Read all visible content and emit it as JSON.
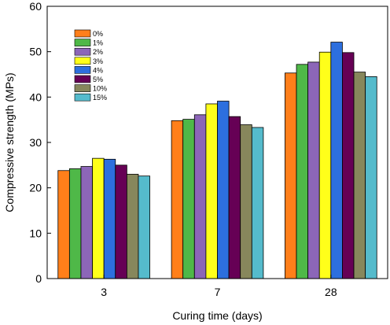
{
  "chart_data": {
    "type": "bar",
    "title": "",
    "xlabel": "Curing time (days)",
    "ylabel": "Compressive strength  (MPs)",
    "ylim": [
      0,
      60
    ],
    "yticks": [
      "0",
      "10",
      "20",
      "30",
      "40",
      "50",
      "60"
    ],
    "categories": [
      "3",
      "7",
      "28"
    ],
    "grid": false,
    "legend_position": "top-left",
    "series": [
      {
        "name": "0%",
        "color": "#ff7f1a",
        "values": [
          23.8,
          34.8,
          45.3
        ]
      },
      {
        "name": "1%",
        "color": "#4fb848",
        "values": [
          24.2,
          35.1,
          47.2
        ]
      },
      {
        "name": "2%",
        "color": "#8c66b8",
        "values": [
          24.7,
          36.1,
          47.7
        ]
      },
      {
        "name": "3%",
        "color": "#ffff1a",
        "values": [
          26.5,
          38.5,
          49.9
        ]
      },
      {
        "name": "4%",
        "color": "#2d6fde",
        "values": [
          26.3,
          39.1,
          52.1
        ]
      },
      {
        "name": "5%",
        "color": "#660055",
        "values": [
          25.0,
          35.7,
          49.8
        ]
      },
      {
        "name": "10%",
        "color": "#87875c",
        "values": [
          23.0,
          33.9,
          45.5
        ]
      },
      {
        "name": "15%",
        "color": "#55bbcc",
        "values": [
          22.6,
          33.3,
          44.5
        ]
      }
    ]
  }
}
